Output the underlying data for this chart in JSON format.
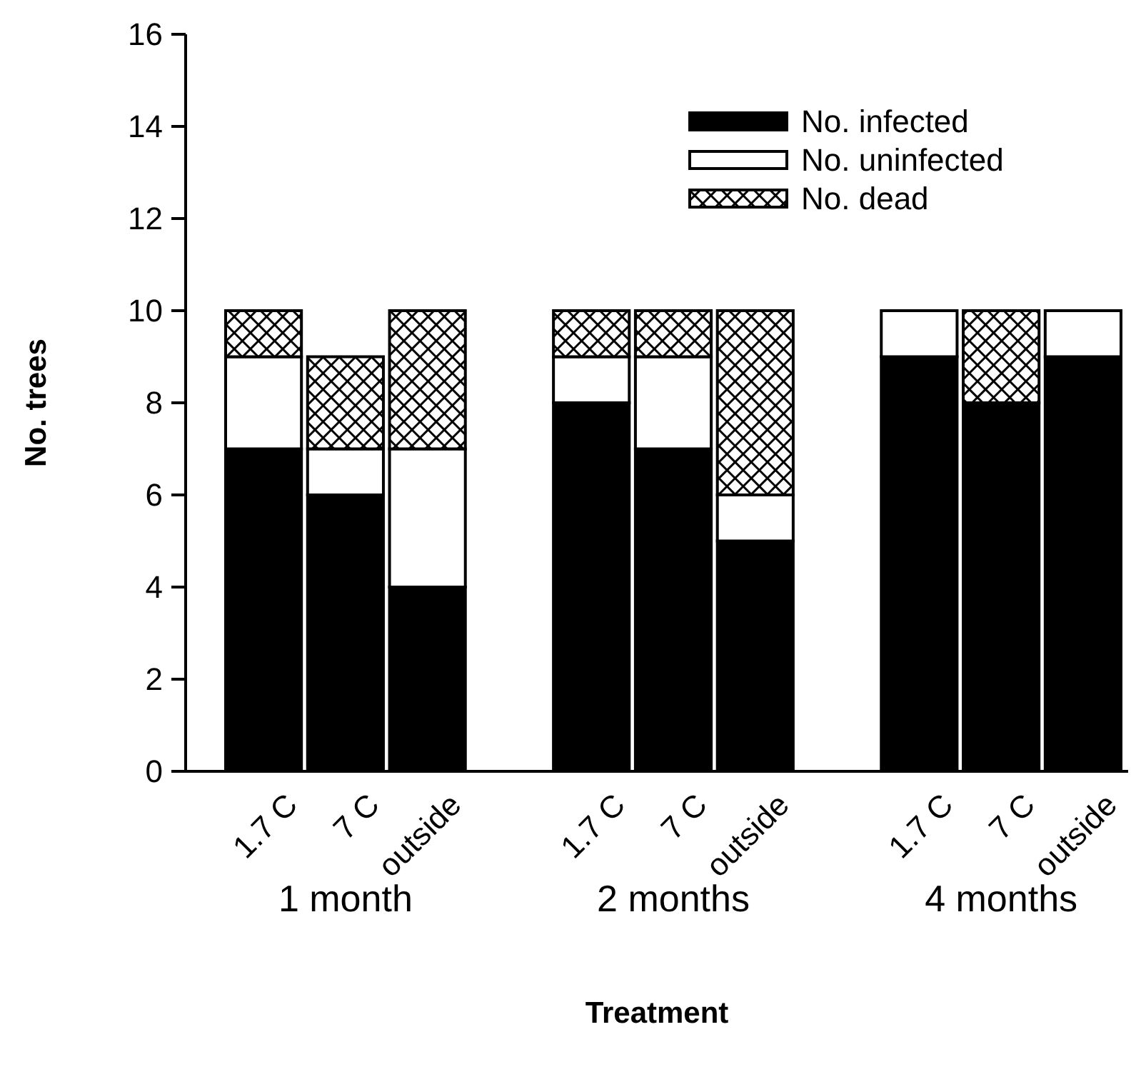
{
  "chart_data": {
    "type": "bar",
    "stacked": true,
    "xlabel": "Treatment",
    "ylabel": "No. trees",
    "categories": [
      "1.7 C",
      "7 C",
      "outside",
      null,
      "1.7 C",
      "7 C",
      "outside",
      null,
      "1.7 C",
      "7 C",
      "outside"
    ],
    "series": [
      {
        "name": "No. infected",
        "color": "#000000",
        "values": [
          7,
          6,
          4,
          null,
          8,
          7,
          5,
          null,
          9,
          8,
          9
        ]
      },
      {
        "name": "No. uninfected",
        "color": "#ffffff",
        "values": [
          2,
          1,
          3,
          null,
          1,
          2,
          1,
          null,
          1,
          0,
          1
        ]
      },
      {
        "name": "No. dead",
        "color": "#000000",
        "values": [
          1,
          2,
          3,
          null,
          1,
          1,
          4,
          null,
          0,
          2,
          0
        ]
      }
    ],
    "annotations": [
      "1 month",
      "2 months",
      "4 months"
    ],
    "ylim": [
      0,
      16
    ],
    "yticks": [
      0,
      2,
      4,
      6,
      8,
      10,
      12,
      14,
      16
    ],
    "grid": false,
    "legend": "top right"
  }
}
